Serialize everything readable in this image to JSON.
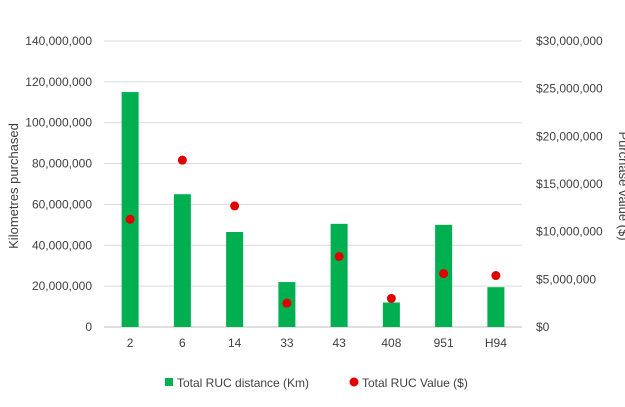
{
  "chart_data": {
    "type": "bar",
    "title": "",
    "categories": [
      "2",
      "6",
      "14",
      "33",
      "43",
      "408",
      "951",
      "H94"
    ],
    "series": [
      {
        "name": "Total RUC distance (Km)",
        "mark": "bar",
        "axis": "left",
        "color": "#00b050",
        "values": [
          115000000,
          65000000,
          46500000,
          22000000,
          50500000,
          12000000,
          50000000,
          19500000
        ]
      },
      {
        "name": "Total RUC Value ($)",
        "mark": "scatter",
        "axis": "right",
        "color": "#e00000",
        "values": [
          11300000,
          17500000,
          12700000,
          2500000,
          7400000,
          3000000,
          5600000,
          5400000
        ]
      }
    ],
    "y_left": {
      "label": "Kilometres purchased",
      "ylim": [
        0,
        140000000
      ],
      "ticks": [
        "0",
        "20,000,000",
        "40,000,000",
        "60,000,000",
        "80,000,000",
        "100,000,000",
        "120,000,000",
        "140,000,000"
      ]
    },
    "y_right": {
      "label": "Purchase value ($)",
      "ylim": [
        0,
        30000000
      ],
      "ticks": [
        "$0",
        "$5,000,000",
        "$10,000,000",
        "$15,000,000",
        "$20,000,000",
        "$25,000,000",
        "$30,000,000"
      ]
    },
    "grid": true,
    "legend_position": "bottom"
  }
}
